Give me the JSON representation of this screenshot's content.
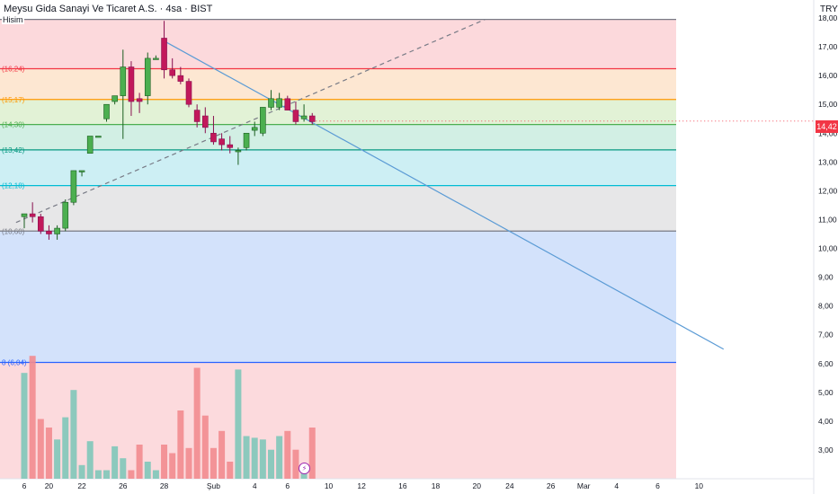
{
  "header": {
    "title": "Meysu Gida Sanayi Ve Ticaret A.S. · 4sa · BIST",
    "currency": "TRY",
    "last_price_label": "14,42",
    "hisim_label": "Hisim"
  },
  "colors": {
    "up": "#26a69a",
    "up_body": "#4caf50",
    "down": "#e91e63",
    "down_body": "#c2185b",
    "trend": "#5b9bd5",
    "price_tag": "#f23645"
  },
  "icons": {
    "event": "lightning-icon"
  },
  "chart_data": {
    "type": "candlestick",
    "title": "Meysu Gida Sanayi Ve Ticaret A.S. · 4sa · BIST",
    "ylim": [
      2.0,
      18.0
    ],
    "y_ticks": [
      {
        "v": 3,
        "label": "3,00"
      },
      {
        "v": 4,
        "label": "4,00"
      },
      {
        "v": 5,
        "label": "5,00"
      },
      {
        "v": 6,
        "label": "6,00"
      },
      {
        "v": 7,
        "label": "7,00"
      },
      {
        "v": 8,
        "label": "8,00"
      },
      {
        "v": 9,
        "label": "9,00"
      },
      {
        "v": 10,
        "label": "10,00"
      },
      {
        "v": 11,
        "label": "11,00"
      },
      {
        "v": 12,
        "label": "12,00"
      },
      {
        "v": 13,
        "label": "13,00"
      },
      {
        "v": 14,
        "label": "14,00"
      },
      {
        "v": 15,
        "label": "15,00"
      },
      {
        "v": 16,
        "label": "16,00"
      },
      {
        "v": 17,
        "label": "17,00"
      },
      {
        "v": 18,
        "label": "18,00"
      }
    ],
    "x_ticks": [
      {
        "pos": 0,
        "label": "6"
      },
      {
        "pos": 3,
        "label": "20"
      },
      {
        "pos": 7,
        "label": "22"
      },
      {
        "pos": 12,
        "label": "26"
      },
      {
        "pos": 17,
        "label": "28"
      },
      {
        "pos": 23,
        "label": "Şub"
      },
      {
        "pos": 28,
        "label": "4"
      },
      {
        "pos": 32,
        "label": "6"
      },
      {
        "pos": 37,
        "label": "10"
      },
      {
        "pos": 41,
        "label": "12"
      },
      {
        "pos": 46,
        "label": "16"
      },
      {
        "pos": 50,
        "label": "18"
      },
      {
        "pos": 55,
        "label": "20"
      },
      {
        "pos": 59,
        "label": "24"
      },
      {
        "pos": 64,
        "label": "26"
      },
      {
        "pos": 68,
        "label": "Mar"
      },
      {
        "pos": 72,
        "label": "4"
      },
      {
        "pos": 77,
        "label": "6"
      },
      {
        "pos": 82,
        "label": "10"
      }
    ],
    "candles": [
      {
        "o": 11.1,
        "h": 11.2,
        "l": 10.7,
        "c": 11.2
      },
      {
        "o": 11.2,
        "h": 11.6,
        "l": 10.9,
        "c": 11.1
      },
      {
        "o": 11.1,
        "h": 11.2,
        "l": 10.5,
        "c": 10.6
      },
      {
        "o": 10.6,
        "h": 10.8,
        "l": 10.3,
        "c": 10.5
      },
      {
        "o": 10.5,
        "h": 10.8,
        "l": 10.3,
        "c": 10.7
      },
      {
        "o": 10.7,
        "h": 11.7,
        "l": 10.6,
        "c": 11.6
      },
      {
        "o": 11.6,
        "h": 12.7,
        "l": 11.5,
        "c": 12.7
      },
      {
        "o": 12.7,
        "h": 12.7,
        "l": 12.5,
        "c": 12.7
      },
      {
        "o": 13.3,
        "h": 13.9,
        "l": 13.3,
        "c": 13.9
      },
      {
        "o": 13.9,
        "h": 13.9,
        "l": 13.9,
        "c": 13.9
      },
      {
        "o": 14.5,
        "h": 15.0,
        "l": 14.4,
        "c": 15.0
      },
      {
        "o": 15.1,
        "h": 15.3,
        "l": 15.0,
        "c": 15.3
      },
      {
        "o": 15.3,
        "h": 16.9,
        "l": 13.8,
        "c": 16.3
      },
      {
        "o": 16.3,
        "h": 16.5,
        "l": 14.6,
        "c": 15.1
      },
      {
        "o": 15.2,
        "h": 15.4,
        "l": 14.7,
        "c": 15.1
      },
      {
        "o": 15.3,
        "h": 16.8,
        "l": 15.0,
        "c": 16.6
      },
      {
        "o": 16.6,
        "h": 16.7,
        "l": 16.6,
        "c": 16.6
      },
      {
        "o": 17.3,
        "h": 17.9,
        "l": 15.9,
        "c": 16.2
      },
      {
        "o": 16.2,
        "h": 16.6,
        "l": 15.9,
        "c": 16.0
      },
      {
        "o": 16.0,
        "h": 16.3,
        "l": 15.7,
        "c": 15.8
      },
      {
        "o": 15.8,
        "h": 15.9,
        "l": 14.9,
        "c": 15.0
      },
      {
        "o": 14.8,
        "h": 15.0,
        "l": 14.2,
        "c": 14.4
      },
      {
        "o": 14.6,
        "h": 14.9,
        "l": 14.0,
        "c": 14.2
      },
      {
        "o": 14.0,
        "h": 14.6,
        "l": 13.6,
        "c": 13.7
      },
      {
        "o": 13.8,
        "h": 14.0,
        "l": 13.4,
        "c": 13.6
      },
      {
        "o": 13.6,
        "h": 13.9,
        "l": 13.3,
        "c": 13.5
      },
      {
        "o": 13.4,
        "h": 13.5,
        "l": 12.9,
        "c": 13.4
      },
      {
        "o": 13.5,
        "h": 14.0,
        "l": 13.4,
        "c": 14.0
      },
      {
        "o": 14.1,
        "h": 14.4,
        "l": 13.9,
        "c": 14.2
      },
      {
        "o": 14.0,
        "h": 14.9,
        "l": 13.9,
        "c": 14.9
      },
      {
        "o": 14.9,
        "h": 15.5,
        "l": 14.8,
        "c": 15.2
      },
      {
        "o": 14.9,
        "h": 15.4,
        "l": 14.8,
        "c": 15.2
      },
      {
        "o": 15.2,
        "h": 15.3,
        "l": 14.8,
        "c": 14.8
      },
      {
        "o": 14.8,
        "h": 15.1,
        "l": 14.3,
        "c": 14.4
      },
      {
        "o": 14.5,
        "h": 15.0,
        "l": 14.4,
        "c": 14.6
      },
      {
        "o": 14.6,
        "h": 14.7,
        "l": 14.3,
        "c": 14.4
      }
    ],
    "volume_rel": [
      0.62,
      0.72,
      0.35,
      0.3,
      0.23,
      0.36,
      0.52,
      0.08,
      0.22,
      0.05,
      0.05,
      0.19,
      0.12,
      0.05,
      0.2,
      0.1,
      0.05,
      0.2,
      0.15,
      0.4,
      0.18,
      0.65,
      0.37,
      0.18,
      0.28,
      0.1,
      0.64,
      0.25,
      0.24,
      0.23,
      0.17,
      0.25,
      0.28,
      0.17,
      0.07,
      0.3
    ],
    "levels": [
      {
        "v": 17.95,
        "label": "",
        "color": "#787b86"
      },
      {
        "v": 16.24,
        "label": "(16,24)",
        "color": "#f23645"
      },
      {
        "v": 15.17,
        "label": "(15,17)",
        "color": "#ff9800"
      },
      {
        "v": 14.3,
        "label": "(14,30)",
        "color": "#4caf50"
      },
      {
        "v": 13.42,
        "label": "(13,42)",
        "color": "#089981"
      },
      {
        "v": 12.18,
        "label": "(12,18)",
        "color": "#00bcd4"
      },
      {
        "v": 10.6,
        "label": "(10,60)",
        "color": "#787b86"
      },
      {
        "v": 6.04,
        "label": "8 (6,04)",
        "color": "#2962ff"
      }
    ],
    "bands": [
      {
        "from": 16.24,
        "to": 17.95,
        "color": "#fcd9dc"
      },
      {
        "from": 15.17,
        "to": 16.24,
        "color": "#fde7d2"
      },
      {
        "from": 14.3,
        "to": 15.17,
        "color": "#e2f2d6"
      },
      {
        "from": 13.42,
        "to": 14.3,
        "color": "#d2efe4"
      },
      {
        "from": 12.18,
        "to": 13.42,
        "color": "#cdeff4"
      },
      {
        "from": 10.6,
        "to": 12.18,
        "color": "#e7e7e8"
      },
      {
        "from": 6.04,
        "to": 10.6,
        "color": "#d3e2fb"
      },
      {
        "from": 2.0,
        "to": 6.04,
        "color": "#fcdadd"
      }
    ],
    "trend_line": {
      "from": {
        "idx": 17,
        "v": 17.2
      },
      "to": {
        "idx": 85,
        "v": 6.5
      }
    },
    "dashed_line": {
      "from": {
        "idx": -1,
        "v": 10.9
      },
      "to": {
        "idx": 56,
        "v": 17.95
      }
    },
    "last_price": 14.42
  }
}
